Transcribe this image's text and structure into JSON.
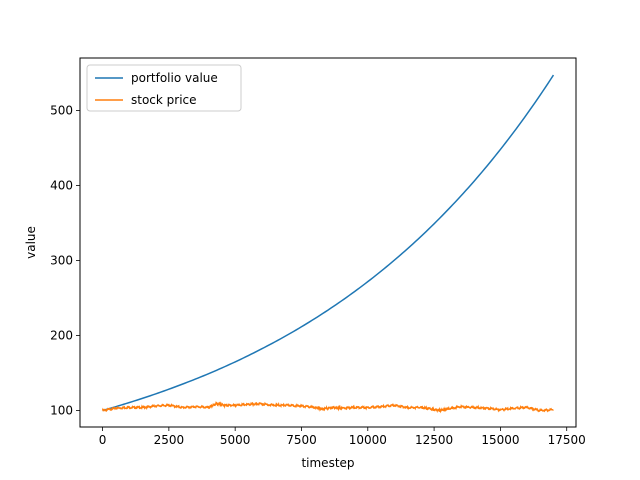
{
  "chart_data": {
    "type": "line",
    "title": "",
    "xlabel": "timestep",
    "ylabel": "value",
    "xlim": [
      -850,
      17850
    ],
    "ylim": [
      78,
      570
    ],
    "xticks": [
      0,
      2500,
      5000,
      7500,
      10000,
      12500,
      15000,
      17500
    ],
    "yticks": [
      100,
      200,
      300,
      400,
      500
    ],
    "legend_placement": "upper-left",
    "grid": false,
    "series": [
      {
        "name": "portfolio value",
        "color": "#1f77b4",
        "x": [
          0,
          1000,
          2000,
          3000,
          4000,
          5000,
          6000,
          7000,
          8000,
          9000,
          10000,
          11000,
          12000,
          13000,
          14000,
          15000,
          16000,
          17000
        ],
        "y": [
          100,
          110.5,
          122.1,
          135,
          149.1,
          164.8,
          182.2,
          201.3,
          222.5,
          245.9,
          271.8,
          300.4,
          331.9,
          366.9,
          405.4,
          448.1,
          495.2,
          547.3
        ]
      },
      {
        "name": "stock price",
        "color": "#ff7f0e",
        "x": [
          0,
          500,
          1000,
          1500,
          2000,
          2500,
          3000,
          3500,
          4000,
          4300,
          4600,
          5000,
          5500,
          5900,
          6500,
          7000,
          7500,
          8000,
          8300,
          8700,
          9000,
          9500,
          10000,
          10500,
          11000,
          11500,
          12000,
          12400,
          12700,
          13000,
          13500,
          14000,
          14500,
          15000,
          15500,
          16000,
          16500,
          17000
        ],
        "y": [
          100,
          103,
          104,
          104,
          106,
          107,
          104,
          105,
          104,
          109,
          107,
          107,
          108,
          109,
          107,
          107,
          106,
          104,
          102,
          104,
          103,
          104,
          104,
          105,
          107,
          104,
          104,
          102,
          100,
          102,
          105,
          104,
          103,
          101,
          103,
          104,
          100,
          101
        ]
      }
    ]
  }
}
